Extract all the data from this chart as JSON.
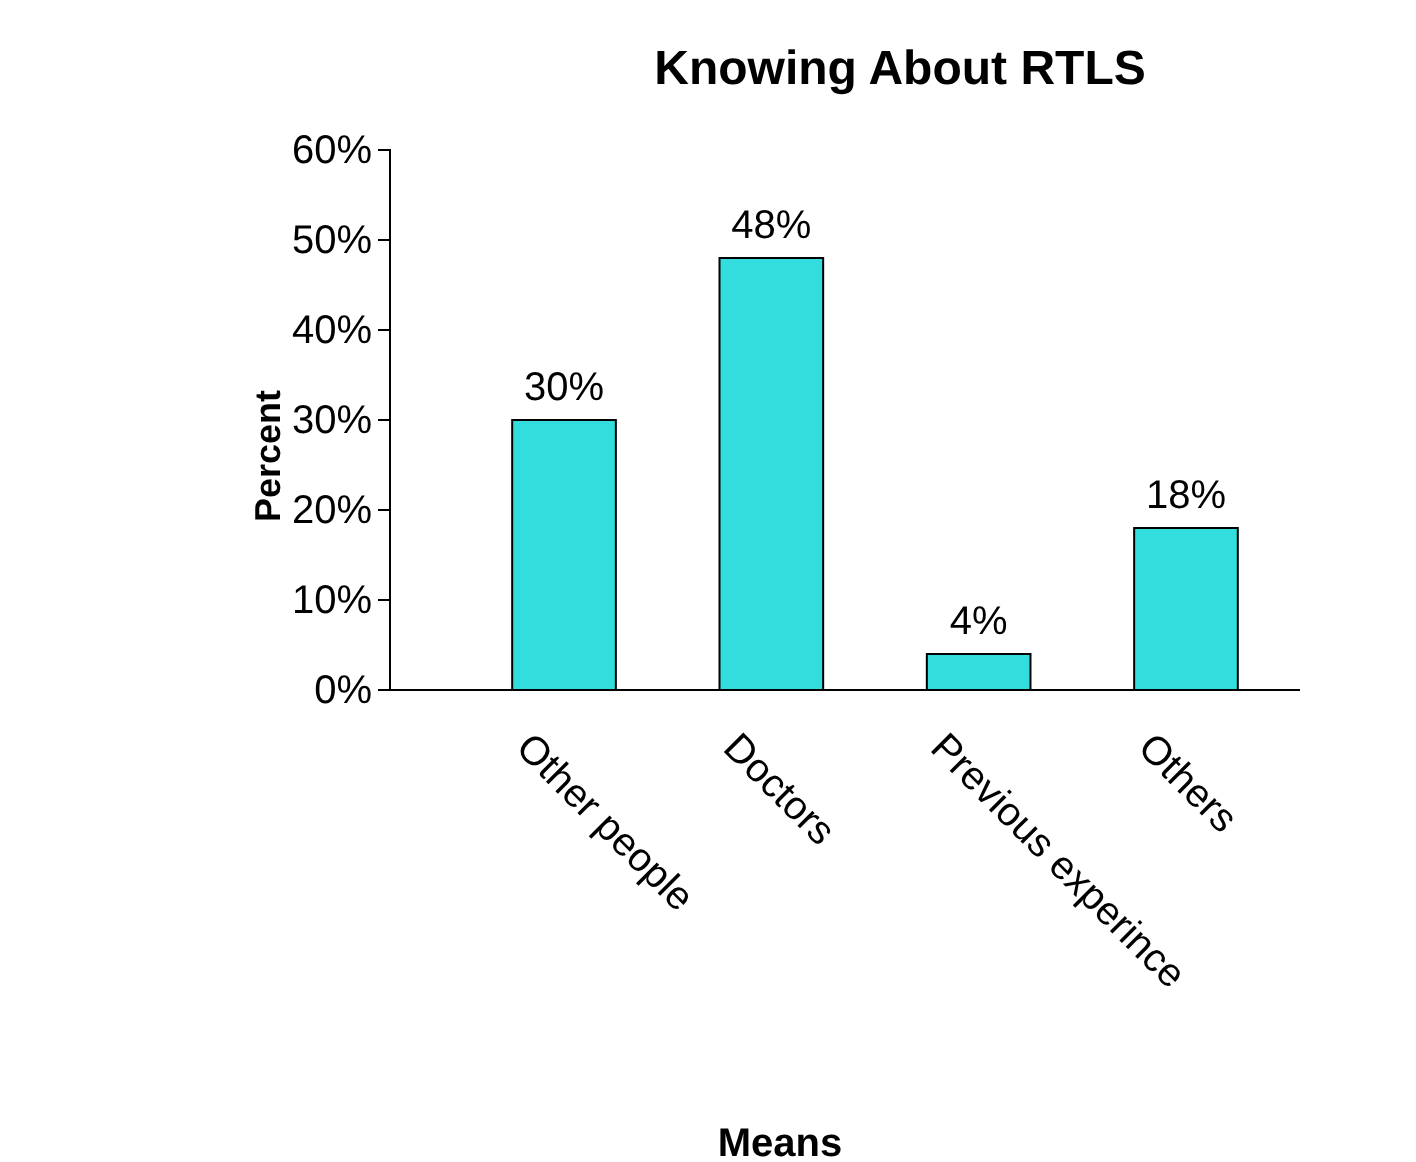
{
  "chart_data": {
    "type": "bar",
    "title": "Knowing About RTLS",
    "xlabel": "Means",
    "ylabel": "Percent",
    "categories": [
      "Other people",
      "Doctors",
      "Previous experince",
      "Others"
    ],
    "values": [
      30,
      48,
      4,
      18
    ],
    "value_labels": [
      "30%",
      "48%",
      "4%",
      "18%"
    ],
    "color": "#33dddd",
    "ylim": [
      0,
      60
    ],
    "yticks": [
      {
        "value": 0,
        "label": "0%"
      },
      {
        "value": 10,
        "label": "10%"
      },
      {
        "value": 20,
        "label": "20%"
      },
      {
        "value": 30,
        "label": "30%"
      },
      {
        "value": 40,
        "label": "40%"
      },
      {
        "value": 50,
        "label": "50%"
      },
      {
        "value": 60,
        "label": "60%"
      }
    ],
    "grid": false
  }
}
